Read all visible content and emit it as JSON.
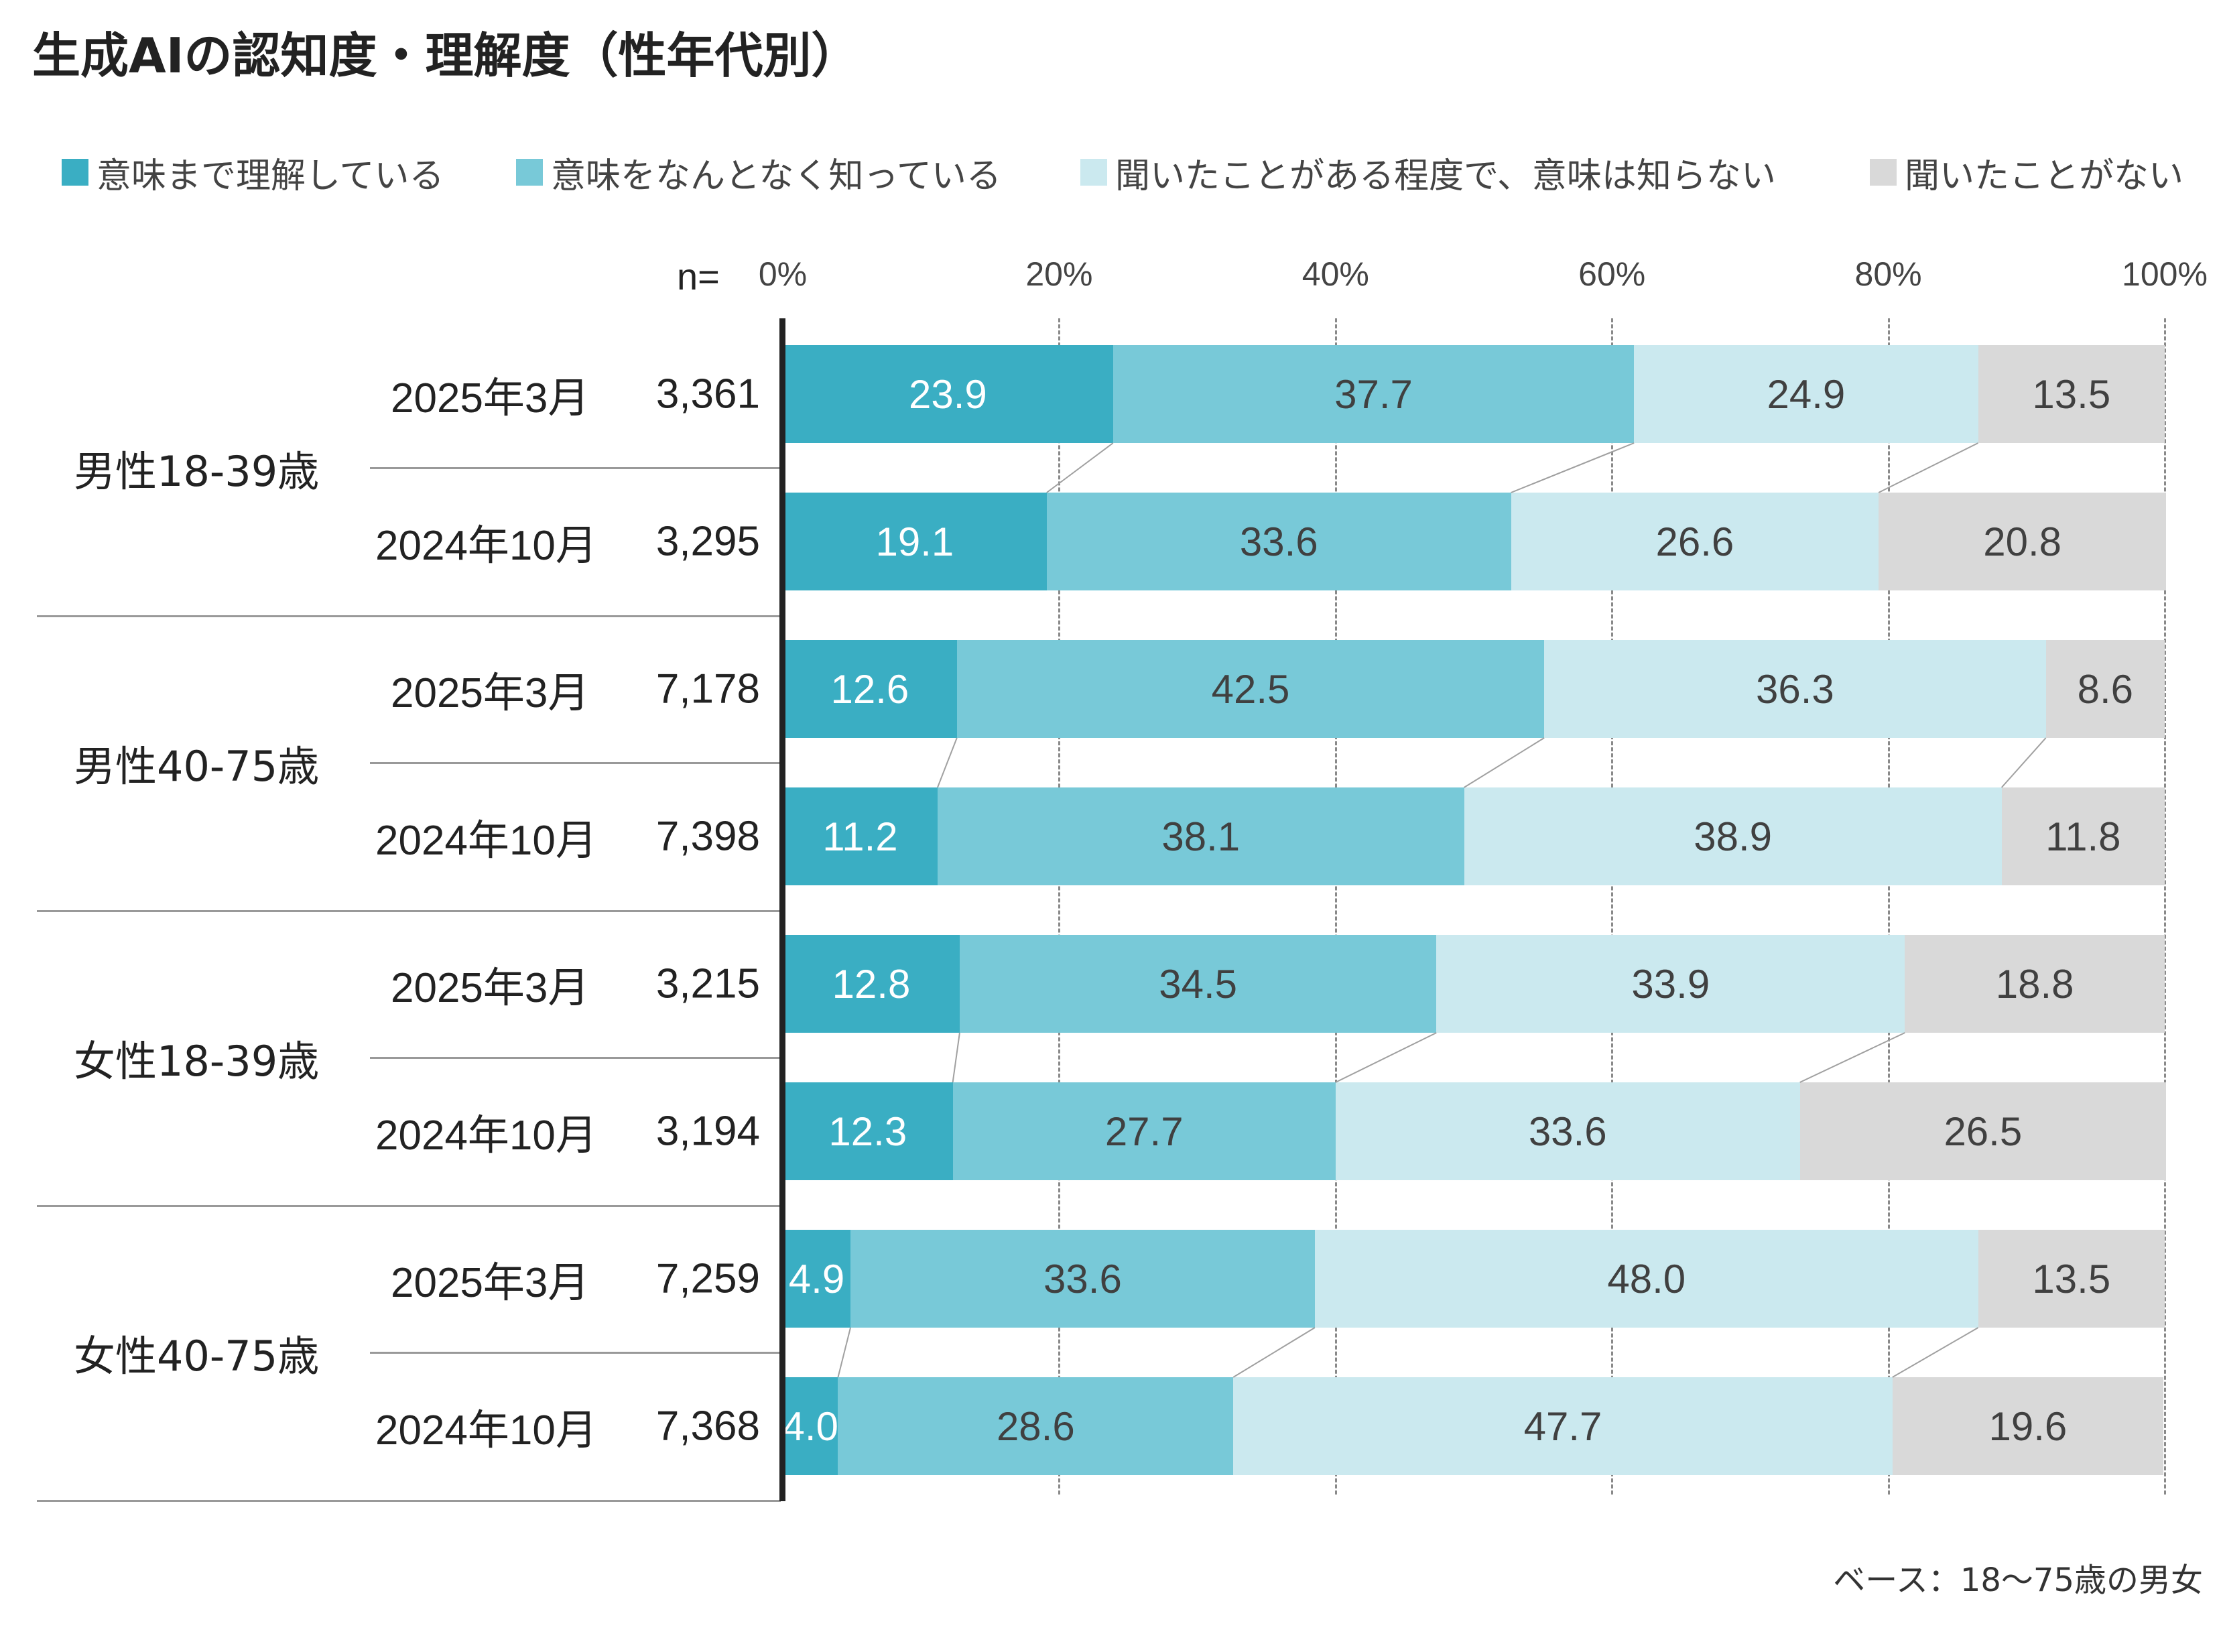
{
  "title": "生成AIの認知度・理解度（性年代別）",
  "footnote": "ベース：18〜75歳の男女",
  "n_label": "n=",
  "colors": {
    "s1": "#3AAEC3",
    "s2": "#78C9D8",
    "s3": "#CBE9EF",
    "s4": "#D9D9D9",
    "text_dark": "#404040",
    "text_light": "#ffffff"
  },
  "legend": [
    {
      "label": "意味まで理解している",
      "color": "#3AAEC3"
    },
    {
      "label": "意味をなんとなく知っている",
      "color": "#78C9D8"
    },
    {
      "label": "聞いたことがある程度で、意味は知らない",
      "color": "#CBE9EF"
    },
    {
      "label": "聞いたことがない",
      "color": "#D9D9D9"
    }
  ],
  "chart_data": {
    "type": "bar",
    "orientation": "horizontal",
    "stacked": "100%",
    "xlim": [
      0,
      100
    ],
    "x_ticks": [
      "0%",
      "20%",
      "40%",
      "60%",
      "80%",
      "100%"
    ],
    "series": [
      {
        "name": "意味まで理解している",
        "values": [
          23.9,
          19.1,
          12.6,
          11.2,
          12.8,
          12.3,
          4.9,
          4.0
        ]
      },
      {
        "name": "意味をなんとなく知っている",
        "values": [
          37.7,
          33.6,
          42.5,
          38.1,
          34.5,
          27.7,
          33.6,
          28.6
        ]
      },
      {
        "name": "聞いたことがある程度で、意味は知らない",
        "values": [
          24.9,
          26.6,
          36.3,
          38.9,
          33.9,
          33.6,
          48.0,
          47.7
        ]
      },
      {
        "name": "聞いたことがない",
        "values": [
          13.5,
          20.8,
          8.6,
          11.8,
          18.8,
          26.5,
          13.5,
          19.6
        ]
      }
    ],
    "value_labels": [
      [
        "23.9",
        "37.7",
        "24.9",
        "13.5"
      ],
      [
        "19.1",
        "33.6",
        "26.6",
        "20.8"
      ],
      [
        "12.6",
        "42.5",
        "36.3",
        "8.6"
      ],
      [
        "11.2",
        "38.1",
        "38.9",
        "11.8"
      ],
      [
        "12.8",
        "34.5",
        "33.9",
        "18.8"
      ],
      [
        "12.3",
        "27.7",
        "33.6",
        "26.5"
      ],
      [
        "4.9",
        "33.6",
        "48.0",
        "13.5"
      ],
      [
        "4.0",
        "28.6",
        "47.7",
        "19.6"
      ]
    ],
    "groups": [
      {
        "label": "男性18-39歳",
        "rows": [
          {
            "period": "2025年3月",
            "n": "3,361"
          },
          {
            "period": "2024年10月",
            "n": "3,295"
          }
        ]
      },
      {
        "label": "男性40-75歳",
        "rows": [
          {
            "period": "2025年3月",
            "n": "7,178"
          },
          {
            "period": "2024年10月",
            "n": "7,398"
          }
        ]
      },
      {
        "label": "女性18-39歳",
        "rows": [
          {
            "period": "2025年3月",
            "n": "3,215"
          },
          {
            "period": "2024年10月",
            "n": "3,194"
          }
        ]
      },
      {
        "label": "女性40-75歳",
        "rows": [
          {
            "period": "2025年3月",
            "n": "7,259"
          },
          {
            "period": "2024年10月",
            "n": "7,368"
          }
        ]
      }
    ],
    "grid": true,
    "connector_lines": true,
    "legend_position": "top"
  }
}
